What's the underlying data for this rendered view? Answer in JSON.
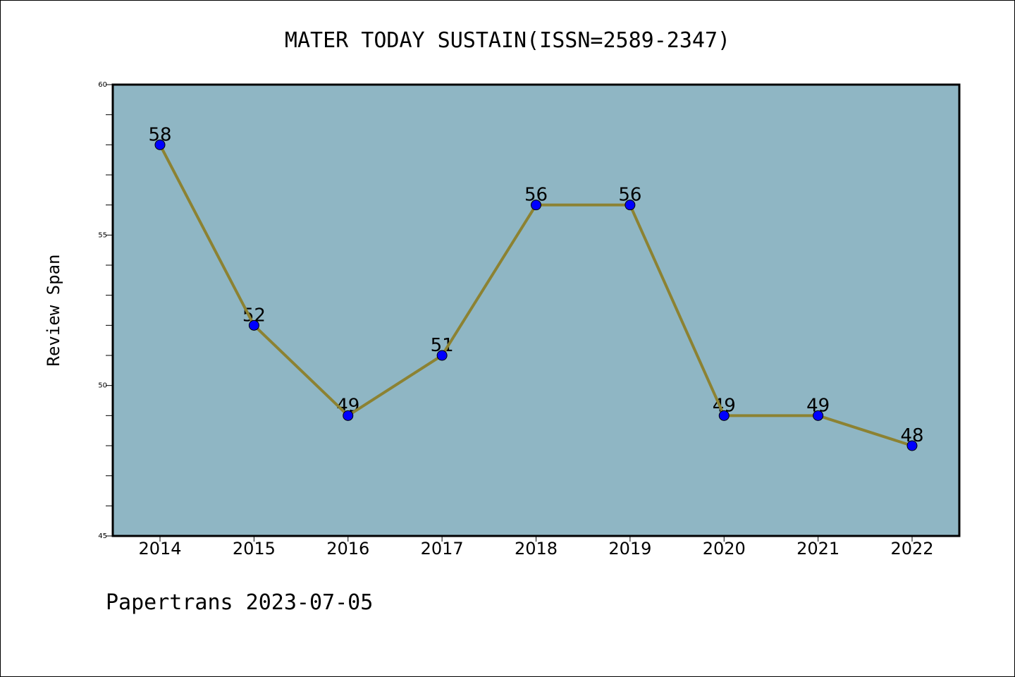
{
  "chart_data": {
    "type": "line",
    "title": "MATER TODAY SUSTAIN(ISSN=2589-2347)",
    "xlabel": "",
    "ylabel": "Review Span",
    "categories": [
      "2014",
      "2015",
      "2016",
      "2017",
      "2018",
      "2019",
      "2020",
      "2021",
      "2022"
    ],
    "series": [
      {
        "values": [
          58,
          52,
          49,
          51,
          56,
          56,
          49,
          49,
          48
        ]
      }
    ],
    "data_labels": [
      "58",
      "52",
      "49",
      "51",
      "56",
      "56",
      "49",
      "49",
      "48"
    ],
    "yticks": [
      "45",
      "50",
      "55",
      "60"
    ],
    "ylim": [
      45,
      60
    ],
    "grid": false,
    "colors": {
      "plot_background": "#8fb6c4",
      "line": "#8c8232",
      "marker": "#0000ff",
      "axes": "#000000"
    }
  },
  "footer": {
    "text": "Papertrans 2023-07-05"
  }
}
